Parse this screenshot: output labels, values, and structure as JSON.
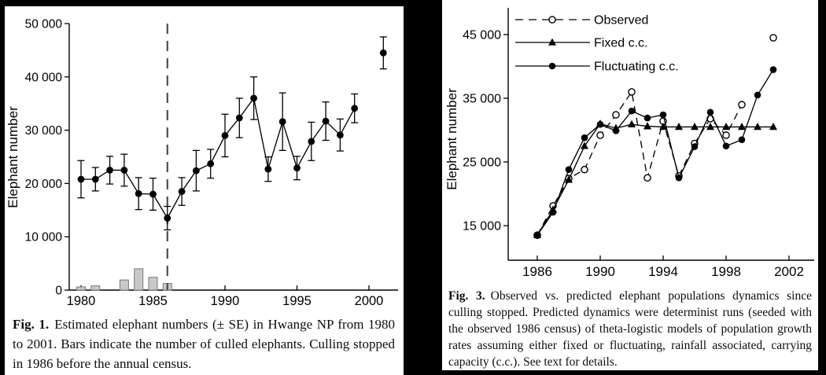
{
  "colors": {
    "canvas_bg": "#000000",
    "panel_bg": "#ffffff",
    "ink": "#000000",
    "bar_fill": "#c8c8c8",
    "bar_stroke": "#7a7a7a",
    "dashed_vline": "#4d4d4d"
  },
  "fig1": {
    "caption_tag": "Fig. 1.",
    "caption_text": "Estimated elephant numbers (± SE) in Hwange NP from 1980 to 2001. Bars indicate the number of culled elephants. Culling stopped in 1986 before the annual census."
  },
  "fig3": {
    "caption_tag": "Fig. 3.",
    "caption_text": "Observed vs. predicted elephant populations dynamics since culling stopped. Predicted dynamics were determinist runs (seeded with the observed 1986 census) of theta-logistic models of population growth rates assuming either fixed or fluctuating, rainfall associated, carrying capacity (c.c.). See text for details."
  },
  "chart_data": [
    {
      "id": "fig1",
      "type": "line",
      "title": "",
      "xlabel": "",
      "ylabel": "Elephant number",
      "ylim": [
        0,
        50000
      ],
      "xlim": [
        1979,
        2002
      ],
      "grid": false,
      "yticks": [
        0,
        10000,
        20000,
        30000,
        40000,
        50000
      ],
      "ytick_labels": [
        "0",
        "10 000",
        "20 000",
        "30 000",
        "40 000",
        "50 000"
      ],
      "xticks": [
        1980,
        1985,
        1990,
        1995,
        2000
      ],
      "xtick_labels": [
        "1980",
        "1985",
        "1990",
        "1995",
        "2000"
      ],
      "vline": {
        "x": 1986,
        "style": "dashed"
      },
      "series": [
        {
          "name": "Estimated elephant numbers (± SE)",
          "marker": "filled-circle",
          "line": "solid",
          "x": [
            1980,
            1981,
            1982,
            1983,
            1984,
            1985,
            1986,
            1987,
            1988,
            1989,
            1990,
            1991,
            1992,
            1993,
            1994,
            1995,
            1996,
            1997,
            1998,
            1999,
            2000,
            2001
          ],
          "y": [
            20800,
            20800,
            22500,
            22500,
            18100,
            18000,
            13500,
            18500,
            22400,
            23700,
            29000,
            32300,
            36000,
            22700,
            31600,
            22900,
            27900,
            31700,
            29100,
            34100,
            null,
            44500
          ],
          "se": [
            3500,
            2200,
            2600,
            3000,
            3000,
            3000,
            2200,
            2600,
            3800,
            2700,
            4000,
            3700,
            4000,
            2300,
            5400,
            2200,
            3600,
            3600,
            3000,
            2700,
            null,
            3000
          ]
        }
      ],
      "bars": {
        "name": "Culled elephants",
        "x": [
          1980,
          1981,
          1983,
          1984,
          1985,
          1986
        ],
        "y": [
          600,
          800,
          1900,
          4000,
          2400,
          1250
        ]
      }
    },
    {
      "id": "fig3",
      "type": "line",
      "title": "",
      "xlabel": "",
      "ylabel": "Elephant number",
      "ylim": [
        9500,
        49000
      ],
      "xlim": [
        1985,
        2003
      ],
      "grid": false,
      "legend_position": "top-left-inside",
      "yticks": [
        15000,
        25000,
        35000,
        45000
      ],
      "ytick_labels": [
        "15 000",
        "25 000",
        "35 000",
        "45 000"
      ],
      "xticks": [
        1986,
        1990,
        1994,
        1998,
        2002
      ],
      "xtick_labels": [
        "1986",
        "1990",
        "1994",
        "1998",
        "2002"
      ],
      "series": [
        {
          "name": "Observed",
          "marker": "open-circle",
          "line": "dashed",
          "x": [
            1986,
            1987,
            1988,
            1989,
            1990,
            1991,
            1992,
            1993,
            1994,
            1995,
            1996,
            1997,
            1998,
            1999,
            2000,
            2001
          ],
          "y": [
            13500,
            18100,
            22400,
            23800,
            29200,
            32400,
            36000,
            22500,
            31400,
            22800,
            27900,
            31800,
            29200,
            34000,
            null,
            44500
          ]
        },
        {
          "name": "Fixed c.c.",
          "marker": "filled-triangle",
          "line": "solid",
          "x": [
            1986,
            1987,
            1988,
            1989,
            1990,
            1991,
            1992,
            1993,
            1994,
            1995,
            1996,
            1997,
            1998,
            1999,
            2000,
            2001
          ],
          "y": [
            13500,
            17500,
            22200,
            27500,
            31000,
            30300,
            30900,
            30600,
            30500,
            30500,
            30500,
            30500,
            30500,
            30500,
            30500,
            30500
          ]
        },
        {
          "name": "Fluctuating c.c.",
          "marker": "filled-circle",
          "line": "solid",
          "x": [
            1986,
            1987,
            1988,
            1989,
            1990,
            1991,
            1992,
            1993,
            1994,
            1995,
            1996,
            1997,
            1998,
            1999,
            2000,
            2001
          ],
          "y": [
            13500,
            17100,
            23800,
            28800,
            30900,
            29900,
            33000,
            31900,
            32400,
            22500,
            27400,
            32800,
            27500,
            28500,
            35500,
            39500
          ]
        }
      ]
    }
  ]
}
